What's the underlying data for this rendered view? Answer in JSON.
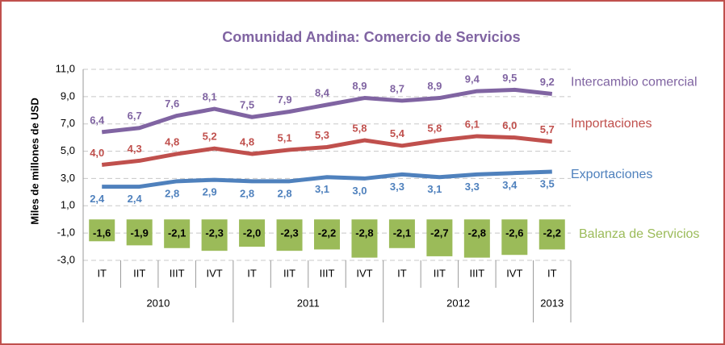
{
  "chart_data": {
    "type": "line",
    "title": "Comunidad Andina: Comercio de Servicios",
    "ylabel": "Miles de millones de USD",
    "categories": [
      "IT",
      "IIT",
      "IIIT",
      "IVT",
      "IT",
      "IIT",
      "IIIT",
      "IVT",
      "IT",
      "IIT",
      "IIIT",
      "IVT",
      "IT"
    ],
    "year_groups": [
      {
        "label": "2010",
        "count": 4
      },
      {
        "label": "2011",
        "count": 4
      },
      {
        "label": "2012",
        "count": 4
      },
      {
        "label": "2013",
        "count": 1
      }
    ],
    "ylim": [
      -3,
      11
    ],
    "yticks": [
      {
        "value": 11,
        "label": "11,0"
      },
      {
        "value": 9,
        "label": "9,0"
      },
      {
        "value": 7,
        "label": "7,0"
      },
      {
        "value": 5,
        "label": "5,0"
      },
      {
        "value": 3,
        "label": "3,0"
      },
      {
        "value": 1,
        "label": "1,0"
      },
      {
        "value": -1,
        "label": "-1,0"
      },
      {
        "value": -3,
        "label": "-3,0"
      }
    ],
    "grid": true,
    "series": [
      {
        "name": "Intercambio comercial",
        "color": "#8064a2",
        "values": [
          6.4,
          6.7,
          7.6,
          8.1,
          7.5,
          7.9,
          8.4,
          8.9,
          8.7,
          8.9,
          9.4,
          9.5,
          9.2
        ],
        "value_labels": [
          "6,4",
          "6,7",
          "7,6",
          "8,1",
          "7,5",
          "7,9",
          "8,4",
          "8,9",
          "8,7",
          "8,9",
          "9,4",
          "9,5",
          "9,2"
        ]
      },
      {
        "name": "Importaciones",
        "color": "#c0504d",
        "values": [
          4.0,
          4.3,
          4.8,
          5.2,
          4.8,
          5.1,
          5.3,
          5.8,
          5.4,
          5.8,
          6.1,
          6.0,
          5.7
        ],
        "value_labels": [
          "4,0",
          "4,3",
          "4,8",
          "5,2",
          "4,8",
          "5,1",
          "5,3",
          "5,8",
          "5,4",
          "5,8",
          "6,1",
          "6,0",
          "5,7"
        ]
      },
      {
        "name": "Exportaciones",
        "color": "#4f81bd",
        "values": [
          2.4,
          2.4,
          2.8,
          2.9,
          2.8,
          2.8,
          3.1,
          3.0,
          3.3,
          3.1,
          3.3,
          3.4,
          3.5
        ],
        "value_labels": [
          "2,4",
          "2,4",
          "2,8",
          "2,9",
          "2,8",
          "2,8",
          "3,1",
          "3,0",
          "3,3",
          "3,1",
          "3,3",
          "3,4",
          "3,5"
        ]
      },
      {
        "name": "Balanza de Servicios",
        "color": "#9bbb59",
        "type": "bar",
        "values": [
          -1.6,
          -1.9,
          -2.1,
          -2.3,
          -2.0,
          -2.3,
          -2.2,
          -2.8,
          -2.1,
          -2.7,
          -2.8,
          -2.6,
          -2.2
        ],
        "value_labels": [
          "-1,6",
          "-1,9",
          "-2,1",
          "-2,3",
          "-2,0",
          "-2,3",
          "-2,2",
          "-2,8",
          "-2,1",
          "-2,7",
          "-2,8",
          "-2,6",
          "-2,2"
        ]
      }
    ]
  }
}
